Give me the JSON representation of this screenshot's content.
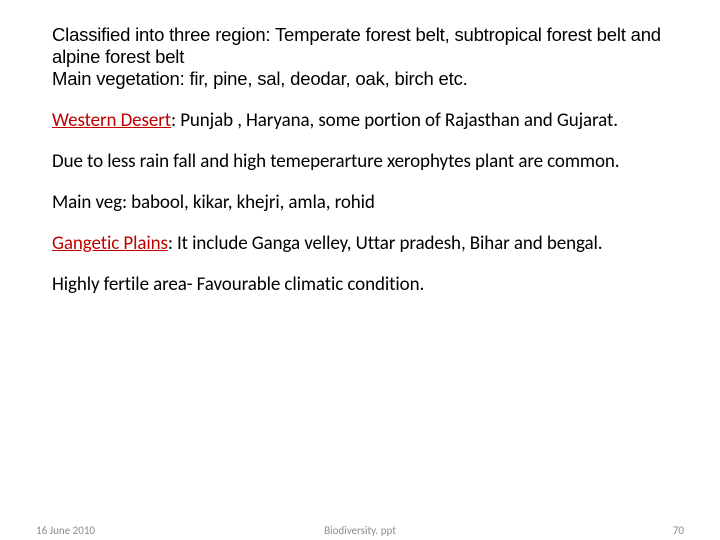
{
  "colors": {
    "text": "#000000",
    "accent": "#c00000",
    "footer": "#8b8b8b",
    "background": "#ffffff"
  },
  "paragraphs": {
    "p1_line1": "Classified into three region: Temperate forest belt, subtropical forest belt and alpine forest belt",
    "p1_line2": "Main vegetation: fir, pine, sal, deodar, oak, birch etc.",
    "p2_accent": "Western Desert",
    "p2_rest": ": Punjab , Haryana, some portion of Rajasthan and Gujarat.",
    "p3": "Due to less rain fall and high temeperarture xerophytes plant are common.",
    "p4": "Main veg: babool, kikar, khejri, amla, rohid",
    "p5_accent": "Gangetic Plains",
    "p5_rest": ":  It include Ganga velley, Uttar pradesh, Bihar and bengal.",
    "p6": "Highly fertile area- Favourable climatic condition."
  },
  "footer": {
    "date": "16 June 2010",
    "title": "Biodiversity. ppt",
    "page": "70"
  }
}
